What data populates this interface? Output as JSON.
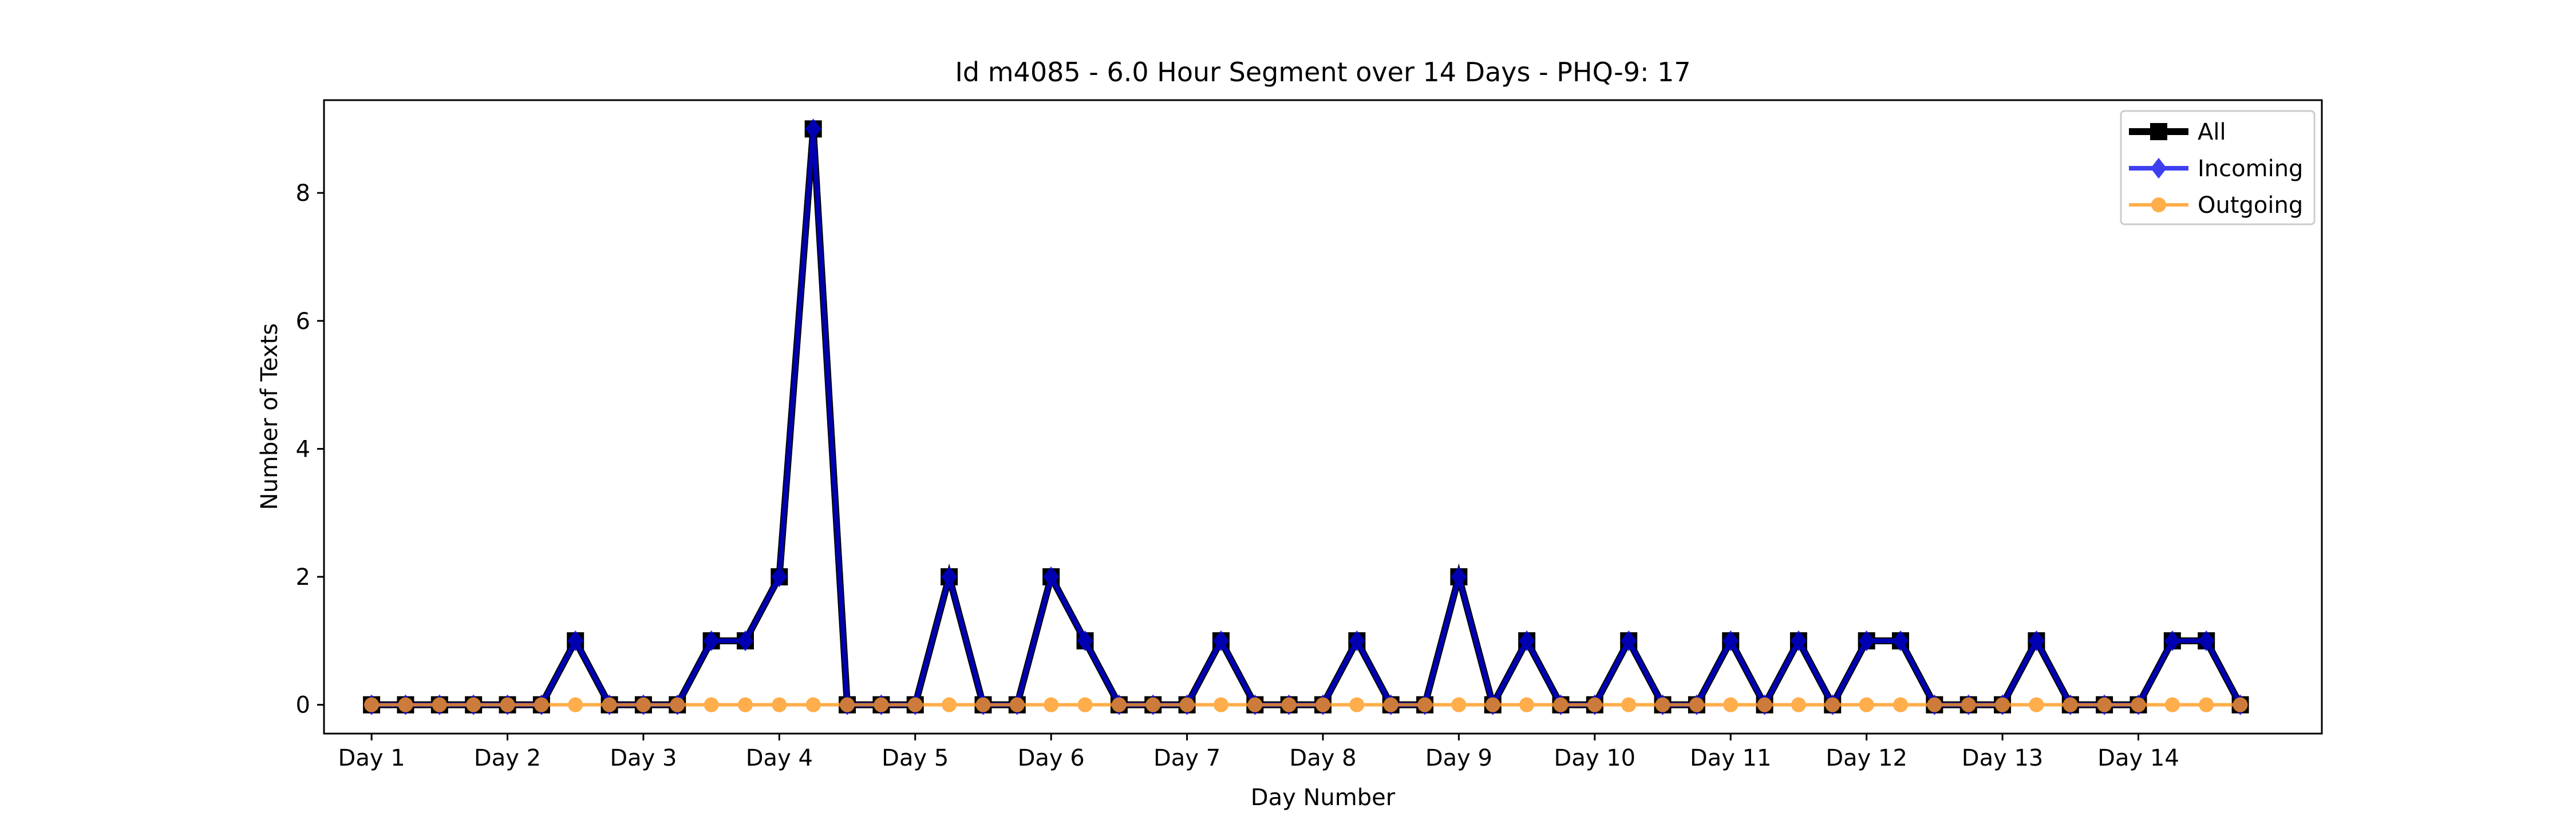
{
  "chart_data": {
    "type": "line",
    "title": "Id m4085 - 6.0 Hour Segment over 14 Days - PHQ-9: 17",
    "xlabel": "Day Number",
    "ylabel": "Number of Texts",
    "x_tick_labels": [
      "Day 1",
      "Day 2",
      "Day 3",
      "Day 4",
      "Day 5",
      "Day 6",
      "Day 7",
      "Day 8",
      "Day 9",
      "Day 10",
      "Day 11",
      "Day 12",
      "Day 13",
      "Day 14"
    ],
    "y_ticks": [
      0,
      2,
      4,
      6,
      8
    ],
    "xlim": [
      -1.4,
      57.4
    ],
    "ylim": [
      -0.45,
      9.45
    ],
    "segments_per_day": 4,
    "grid": false,
    "legend_position": "top-right",
    "series": [
      {
        "name": "All",
        "color": "#000000",
        "marker": "square",
        "values": [
          0,
          0,
          0,
          0,
          0,
          0,
          1,
          0,
          0,
          0,
          1,
          1,
          2,
          9,
          0,
          0,
          0,
          2,
          0,
          0,
          2,
          1,
          0,
          0,
          0,
          1,
          0,
          0,
          0,
          1,
          0,
          0,
          2,
          0,
          1,
          0,
          0,
          1,
          0,
          0,
          1,
          0,
          1,
          0,
          1,
          1,
          0,
          0,
          0,
          1,
          0,
          0,
          0,
          1,
          1,
          0
        ]
      },
      {
        "name": "Incoming",
        "color": "#0000ee",
        "marker": "diamond",
        "values": [
          0,
          0,
          0,
          0,
          0,
          0,
          1,
          0,
          0,
          0,
          1,
          1,
          2,
          9,
          0,
          0,
          0,
          2,
          0,
          0,
          2,
          1,
          0,
          0,
          0,
          1,
          0,
          0,
          0,
          1,
          0,
          0,
          2,
          0,
          1,
          0,
          0,
          1,
          0,
          0,
          1,
          0,
          1,
          0,
          1,
          1,
          0,
          0,
          0,
          1,
          0,
          0,
          0,
          1,
          1,
          0
        ]
      },
      {
        "name": "Outgoing",
        "color": "#ff9a1f",
        "marker": "circle",
        "values": [
          0,
          0,
          0,
          0,
          0,
          0,
          0,
          0,
          0,
          0,
          0,
          0,
          0,
          0,
          0,
          0,
          0,
          0,
          0,
          0,
          0,
          0,
          0,
          0,
          0,
          0,
          0,
          0,
          0,
          0,
          0,
          0,
          0,
          0,
          0,
          0,
          0,
          0,
          0,
          0,
          0,
          0,
          0,
          0,
          0,
          0,
          0,
          0,
          0,
          0,
          0,
          0,
          0,
          0,
          0,
          0
        ]
      }
    ]
  }
}
